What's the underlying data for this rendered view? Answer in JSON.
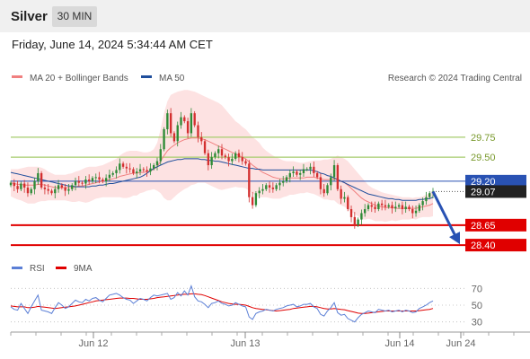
{
  "header": {
    "symbol": "Silver",
    "timeframe": "30 MIN",
    "datetime": "Friday, June 14, 2024 5:34:44 AM CET"
  },
  "colors": {
    "bollinger": "#f08080",
    "bollinger_band_fill": "#fde2e2",
    "ma50": "#1f4e9c",
    "resistance": "#a6cc6d",
    "support": "#e00000",
    "pivot": "#2952b3",
    "last_price_box": "#222222",
    "rsi": "#5b7fd6",
    "rsi_ma": "#e00000",
    "candle_up": "#2d8a36",
    "candle_down": "#d32f2f",
    "forecast_arrow": "#2952b3"
  },
  "chart_data": [
    {
      "type": "candlestick",
      "name": "price",
      "legend": [
        {
          "label": "MA 20 + Bollinger Bands",
          "color": "#f08080"
        },
        {
          "label": "MA 50",
          "color": "#1f4e9c"
        }
      ],
      "legend_placement": "top-left",
      "copyright": "Research © 2024 Trading Central",
      "x_ticks": [
        "Jun 12",
        "Jun 13",
        "Jun 14",
        "Jun 24"
      ],
      "y_range": [
        28.3,
        30.4
      ],
      "levels": [
        {
          "label": "29.75",
          "value": 29.75,
          "role": "resistance"
        },
        {
          "label": "29.50",
          "value": 29.5,
          "role": "resistance"
        },
        {
          "label": "29.20",
          "value": 29.2,
          "role": "pivot"
        },
        {
          "label": "29.07",
          "value": 29.07,
          "role": "last"
        },
        {
          "label": "28.65",
          "value": 28.65,
          "role": "support"
        },
        {
          "label": "28.40",
          "value": 28.4,
          "role": "support"
        }
      ],
      "forecast": {
        "from": 29.07,
        "to": 28.4,
        "direction": "down"
      },
      "close": [
        29.18,
        29.14,
        29.1,
        29.17,
        29.12,
        29.05,
        29.1,
        29.2,
        29.3,
        29.12,
        29.1,
        29.08,
        29.05,
        29.1,
        29.15,
        29.12,
        29.08,
        29.1,
        29.15,
        29.2,
        29.18,
        29.17,
        29.22,
        29.2,
        29.24,
        29.25,
        29.22,
        29.2,
        29.24,
        29.28,
        29.3,
        29.34,
        29.42,
        29.38,
        29.36,
        29.35,
        29.3,
        29.32,
        29.35,
        29.34,
        29.32,
        29.36,
        29.4,
        29.45,
        29.6,
        29.85,
        30.05,
        29.8,
        29.7,
        29.9,
        30.0,
        29.95,
        29.8,
        30.05,
        29.9,
        29.75,
        29.7,
        29.55,
        29.4,
        29.5,
        29.55,
        29.6,
        29.52,
        29.5,
        29.45,
        29.48,
        29.55,
        29.5,
        29.45,
        29.42,
        29.0,
        28.9,
        29.05,
        29.08,
        29.1,
        29.15,
        29.12,
        29.1,
        29.15,
        29.18,
        29.2,
        29.25,
        29.3,
        29.32,
        29.28,
        29.3,
        29.35,
        29.35,
        29.38,
        29.3,
        29.25,
        29.1,
        29.05,
        29.15,
        29.25,
        29.4,
        29.1,
        28.98,
        29.0,
        28.85,
        28.75,
        28.65,
        28.72,
        28.8,
        28.85,
        28.9,
        28.88,
        28.85,
        28.92,
        28.9,
        28.88,
        28.9,
        28.86,
        28.88,
        28.9,
        28.85,
        28.88,
        28.85,
        28.8,
        28.83,
        28.9,
        28.95,
        29.0,
        29.05,
        29.07
      ],
      "bands": {
        "upper": [
          29.35,
          29.35,
          29.35,
          29.36,
          29.37,
          29.38,
          29.38,
          29.38,
          29.38,
          29.37,
          29.35,
          29.32,
          29.3,
          29.28,
          29.28,
          29.28,
          29.28,
          29.29,
          29.3,
          29.32,
          29.33,
          29.35,
          29.37,
          29.38,
          29.38,
          29.38,
          29.39,
          29.4,
          29.42,
          29.44,
          29.46,
          29.48,
          29.52,
          29.55,
          29.57,
          29.58,
          29.58,
          29.58,
          29.57,
          29.56,
          29.56,
          29.57,
          29.6,
          29.68,
          29.85,
          30.05,
          30.2,
          30.28,
          30.3,
          30.32,
          30.33,
          30.34,
          30.34,
          30.33,
          30.32,
          30.3,
          30.28,
          30.26,
          30.24,
          30.22,
          30.2,
          30.18,
          30.15,
          30.1,
          30.05,
          30.0,
          29.95,
          29.92,
          29.88,
          29.85,
          29.8,
          29.75,
          29.72,
          29.68,
          29.62,
          29.58,
          29.55,
          29.52,
          29.5,
          29.48,
          29.46,
          29.45,
          29.45,
          29.45,
          29.44,
          29.43,
          29.43,
          29.44,
          29.45,
          29.46,
          29.46,
          29.46,
          29.47,
          29.47,
          29.48,
          29.5,
          29.52,
          29.5,
          29.48,
          29.45,
          29.4,
          29.35,
          29.3,
          29.25,
          29.2,
          29.15,
          29.12,
          29.1,
          29.08,
          29.06,
          29.05,
          29.04,
          29.03,
          29.02,
          29.01,
          29.0,
          29.0,
          29.0,
          28.99,
          29.0,
          29.0,
          29.01,
          29.03,
          29.05,
          29.08
        ],
        "middle": [
          29.18,
          29.17,
          29.16,
          29.16,
          29.15,
          29.15,
          29.15,
          29.15,
          29.16,
          29.16,
          29.15,
          29.14,
          29.13,
          29.12,
          29.12,
          29.12,
          29.12,
          29.12,
          29.12,
          29.13,
          29.14,
          29.14,
          29.15,
          29.16,
          29.17,
          29.18,
          29.19,
          29.2,
          29.21,
          29.22,
          29.23,
          29.24,
          29.26,
          29.27,
          29.28,
          29.29,
          29.3,
          29.3,
          29.31,
          29.31,
          29.32,
          29.33,
          29.35,
          29.38,
          29.45,
          29.52,
          29.58,
          29.62,
          29.65,
          29.68,
          29.7,
          29.72,
          29.73,
          29.74,
          29.74,
          29.74,
          29.73,
          29.72,
          29.7,
          29.68,
          29.66,
          29.64,
          29.62,
          29.6,
          29.58,
          29.56,
          29.54,
          29.52,
          29.5,
          29.48,
          29.44,
          29.4,
          29.37,
          29.34,
          29.31,
          29.29,
          29.27,
          29.25,
          29.24,
          29.23,
          29.23,
          29.23,
          29.24,
          29.24,
          29.24,
          29.24,
          29.24,
          29.25,
          29.25,
          29.25,
          29.24,
          29.23,
          29.22,
          29.22,
          29.22,
          29.23,
          29.22,
          29.2,
          29.18,
          29.15,
          29.11,
          29.07,
          29.03,
          28.99,
          28.96,
          28.94,
          28.92,
          28.9,
          28.89,
          28.88,
          28.87,
          28.87,
          28.87,
          28.86,
          28.86,
          28.86,
          28.86,
          28.86,
          28.86,
          28.86,
          28.87,
          28.88,
          28.89,
          28.9,
          28.92
        ],
        "lower": [
          29.01,
          28.99,
          28.97,
          28.96,
          28.94,
          28.92,
          28.92,
          28.92,
          28.94,
          28.95,
          28.95,
          28.96,
          28.96,
          28.96,
          28.96,
          28.96,
          28.96,
          28.95,
          28.94,
          28.94,
          28.95,
          28.94,
          28.93,
          28.94,
          28.96,
          28.98,
          28.99,
          29.0,
          29.0,
          29.0,
          29.0,
          29.0,
          29.0,
          28.99,
          28.99,
          29.0,
          29.02,
          29.02,
          29.05,
          29.06,
          29.08,
          29.09,
          29.1,
          29.08,
          29.05,
          28.99,
          28.96,
          28.96,
          29.0,
          29.04,
          29.07,
          29.1,
          29.12,
          29.15,
          29.16,
          29.18,
          29.18,
          29.18,
          29.16,
          29.14,
          29.12,
          29.1,
          29.09,
          29.1,
          29.11,
          29.12,
          29.13,
          29.12,
          29.12,
          29.11,
          29.08,
          29.05,
          29.02,
          29.0,
          29.0,
          29.0,
          28.99,
          28.98,
          28.98,
          28.98,
          29.0,
          29.01,
          29.03,
          29.03,
          29.04,
          29.05,
          29.05,
          29.06,
          29.05,
          29.04,
          29.02,
          29.0,
          28.97,
          28.97,
          28.96,
          28.96,
          28.92,
          28.9,
          28.88,
          28.85,
          28.82,
          28.79,
          28.76,
          28.73,
          28.72,
          28.73,
          28.72,
          28.7,
          28.7,
          28.7,
          28.69,
          28.7,
          28.71,
          28.7,
          28.71,
          28.72,
          28.72,
          28.72,
          28.73,
          28.72,
          28.74,
          28.75,
          28.75,
          28.75,
          28.76
        ]
      },
      "ma50": [
        29.31,
        29.3,
        29.29,
        29.28,
        29.27,
        29.26,
        29.25,
        29.24,
        29.23,
        29.22,
        29.21,
        29.2,
        29.19,
        29.18,
        29.17,
        29.16,
        29.15,
        29.14,
        29.14,
        29.13,
        29.13,
        29.13,
        29.13,
        29.13,
        29.14,
        29.14,
        29.15,
        29.15,
        29.16,
        29.17,
        29.17,
        29.18,
        29.19,
        29.2,
        29.21,
        29.22,
        29.23,
        29.24,
        29.25,
        29.27,
        29.3,
        29.33,
        29.36,
        29.38,
        29.4,
        29.42,
        29.44,
        29.45,
        29.46,
        29.47,
        29.47,
        29.48,
        29.48,
        29.48,
        29.48,
        29.48,
        29.47,
        29.47,
        29.46,
        29.46,
        29.45,
        29.45,
        29.44,
        29.43,
        29.42,
        29.41,
        29.4,
        29.39,
        29.38,
        29.37,
        29.36,
        29.36,
        29.35,
        29.35,
        29.34,
        29.34,
        29.34,
        29.34,
        29.34,
        29.34,
        29.34,
        29.34,
        29.34,
        29.34,
        29.34,
        29.34,
        29.34,
        29.34,
        29.34,
        29.33,
        29.32,
        29.3,
        29.29,
        29.27,
        29.26,
        29.24,
        29.22,
        29.2,
        29.18,
        29.16,
        29.14,
        29.12,
        29.1,
        29.08,
        29.06,
        29.04,
        29.03,
        29.02,
        29.01,
        29.0,
        28.99,
        28.98,
        28.98,
        28.97,
        28.97,
        28.96,
        28.96,
        28.96,
        28.96,
        28.96,
        28.97,
        28.97,
        28.98,
        28.98,
        29.0
      ]
    },
    {
      "type": "line",
      "name": "rsi",
      "legend": [
        {
          "label": "RSI",
          "color": "#5b7fd6"
        },
        {
          "label": "9MA",
          "color": "#e00000"
        }
      ],
      "legend_placement": "top-left",
      "y_range": [
        20,
        80
      ],
      "y_ticks": [
        "70",
        "50",
        "30"
      ],
      "rsi": [
        48,
        45,
        44,
        52,
        46,
        40,
        48,
        55,
        62,
        44,
        43,
        42,
        40,
        47,
        53,
        50,
        46,
        48,
        52,
        56,
        54,
        53,
        57,
        55,
        58,
        59,
        56,
        54,
        58,
        62,
        63,
        64,
        62,
        59,
        57,
        56,
        52,
        55,
        58,
        57,
        55,
        59,
        62,
        61,
        62,
        63,
        64,
        57,
        59,
        65,
        61,
        67,
        62,
        73,
        60,
        55,
        54,
        51,
        47,
        52,
        53,
        55,
        52,
        51,
        49,
        50,
        53,
        51,
        49,
        48,
        36,
        33,
        40,
        42,
        43,
        45,
        44,
        43,
        45,
        46,
        47,
        49,
        50,
        51,
        48,
        49,
        51,
        51,
        52,
        48,
        46,
        39,
        37,
        43,
        47,
        53,
        41,
        38,
        39,
        34,
        32,
        30,
        35,
        39,
        41,
        43,
        42,
        41,
        45,
        44,
        43,
        44,
        42,
        43,
        44,
        42,
        44,
        43,
        41,
        42,
        46,
        48,
        50,
        53,
        55
      ],
      "ma": [
        49,
        48.5,
        48,
        48,
        48,
        47,
        47,
        47.5,
        48.5,
        48,
        47.5,
        47,
        46.5,
        46,
        46.5,
        47,
        47.5,
        48,
        48.5,
        49,
        50,
        51,
        52,
        53,
        54,
        55,
        55.5,
        56,
        56.5,
        57,
        57.5,
        58,
        58.5,
        58.5,
        58.5,
        58,
        58,
        57.5,
        57,
        57,
        57,
        57.5,
        58,
        59,
        59.5,
        60,
        60.5,
        61,
        61.5,
        62,
        62.5,
        63,
        63,
        63.5,
        63.5,
        63,
        62.5,
        61.5,
        60,
        58.5,
        57,
        55.5,
        54,
        53,
        52,
        51.5,
        51,
        51,
        50.5,
        50,
        48.5,
        47,
        46,
        45.5,
        45,
        44.5,
        44,
        43.5,
        43,
        43.5,
        44,
        44.5,
        45,
        46,
        46.5,
        47,
        47.5,
        48,
        48.5,
        48.5,
        48,
        47,
        46,
        45.5,
        45.5,
        46,
        45.5,
        45,
        44.5,
        43.5,
        42.5,
        41.5,
        40.5,
        40,
        40,
        40.5,
        41,
        41.5,
        42,
        42.5,
        43,
        43,
        43,
        43,
        43,
        43,
        43,
        43,
        43,
        43,
        43.5,
        44,
        44.5,
        45,
        46
      ]
    }
  ]
}
